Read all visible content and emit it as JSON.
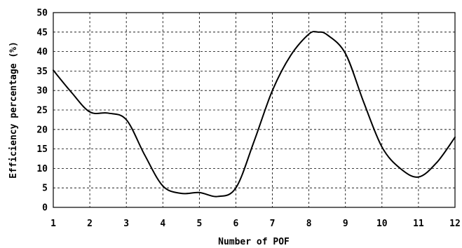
{
  "chart_data": {
    "type": "line",
    "title": "",
    "xlabel": "Number of POF",
    "ylabel": "Efficiency percentage (%)",
    "xlim": [
      1,
      12
    ],
    "ylim": [
      0,
      50
    ],
    "x_ticks": [
      "1",
      "2",
      "3",
      "4",
      "5",
      "6",
      "7",
      "8",
      "9",
      "10",
      "11",
      "12"
    ],
    "y_ticks": [
      "0",
      "5",
      "10",
      "15",
      "20",
      "25",
      "30",
      "35",
      "40",
      "45",
      "50"
    ],
    "grid": true,
    "legend": "none",
    "series": [
      {
        "x": [
          1,
          1.5,
          2,
          2.5,
          3,
          3.5,
          4,
          4.5,
          5,
          5.5,
          6,
          6.5,
          7,
          7.5,
          8,
          8.25,
          8.5,
          9,
          9.5,
          10,
          10.5,
          11,
          11.5,
          12
        ],
        "values": [
          35.2,
          29.5,
          24.5,
          24.2,
          22.5,
          13.5,
          5.5,
          3.6,
          3.8,
          2.8,
          5.0,
          17.0,
          30.0,
          39.0,
          44.5,
          45.0,
          44.3,
          39.5,
          27.0,
          15.5,
          10.0,
          7.8,
          11.5,
          18.0
        ]
      }
    ],
    "line_color": "#000000"
  }
}
